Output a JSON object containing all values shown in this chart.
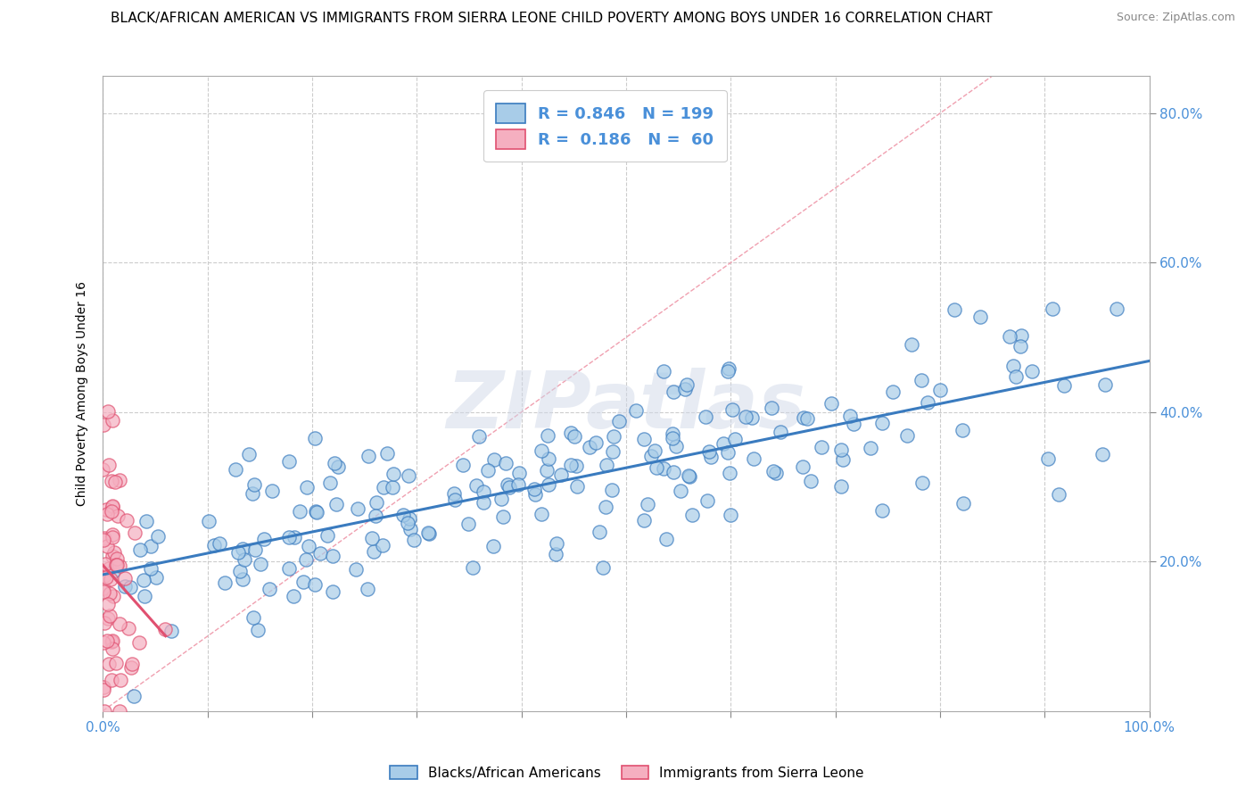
{
  "title": "BLACK/AFRICAN AMERICAN VS IMMIGRANTS FROM SIERRA LEONE CHILD POVERTY AMONG BOYS UNDER 16 CORRELATION CHART",
  "source": "Source: ZipAtlas.com",
  "ylabel": "Child Poverty Among Boys Under 16",
  "xlim": [
    0,
    1.0
  ],
  "ylim": [
    0,
    0.85
  ],
  "x_ticks": [
    0.0,
    0.1,
    0.2,
    0.3,
    0.4,
    0.5,
    0.6,
    0.7,
    0.8,
    0.9,
    1.0
  ],
  "y_ticks": [
    0.2,
    0.4,
    0.6,
    0.8
  ],
  "y_tick_labels": [
    "20.0%",
    "40.0%",
    "60.0%",
    "80.0%"
  ],
  "blue_R": 0.846,
  "blue_N": 199,
  "pink_R": 0.186,
  "pink_N": 60,
  "blue_color": "#a8cce8",
  "pink_color": "#f5afc0",
  "blue_line_color": "#3a7bbf",
  "pink_line_color": "#e05070",
  "diagonal_color": "#f0a0b0",
  "grid_color": "#cccccc",
  "watermark": "ZIPatlas",
  "background_color": "#ffffff",
  "title_fontsize": 11,
  "legend_fontsize": 13,
  "axis_tick_color": "#4a90d9",
  "seed": 42
}
